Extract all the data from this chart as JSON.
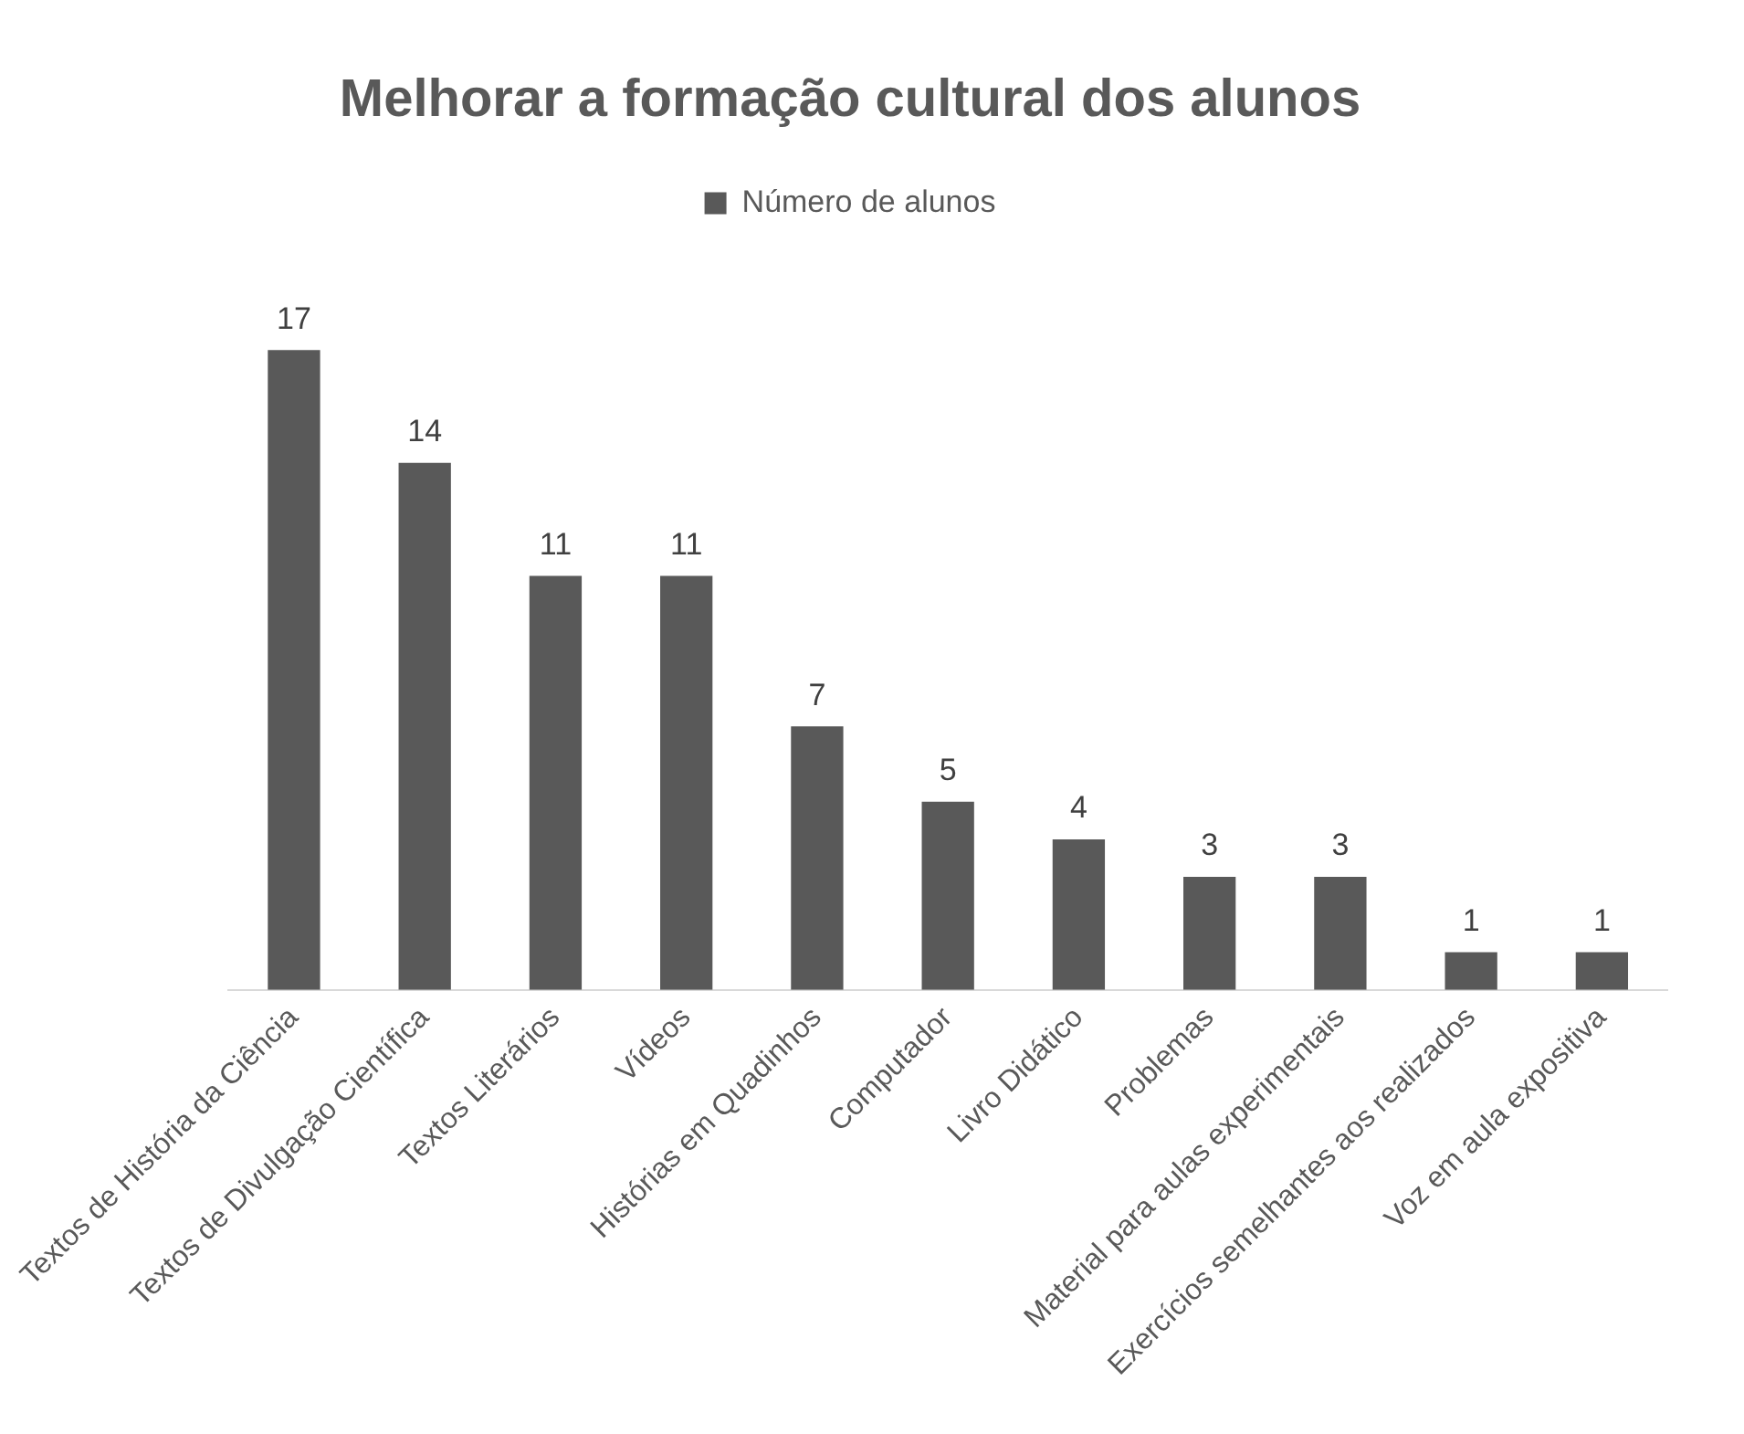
{
  "chart_data": {
    "type": "bar",
    "title": "Melhorar a formação cultural dos alunos",
    "categories": [
      "Textos de História da Ciência",
      "Textos de Divulgação Científica",
      "Textos Literários",
      "Vídeos",
      "Histórias em Quadinhos",
      "Computador",
      "Livro Didático",
      "Problemas",
      "Material para aulas experimentais",
      "Exercícios semelhantes aos realizados",
      "Voz em aula expositiva"
    ],
    "series": [
      {
        "name": "Número de alunos",
        "color": "#595959",
        "values": [
          17,
          14,
          11,
          11,
          7,
          5,
          4,
          3,
          3,
          1,
          1
        ]
      }
    ],
    "data_labels": true,
    "legend": "top",
    "grid": false
  }
}
